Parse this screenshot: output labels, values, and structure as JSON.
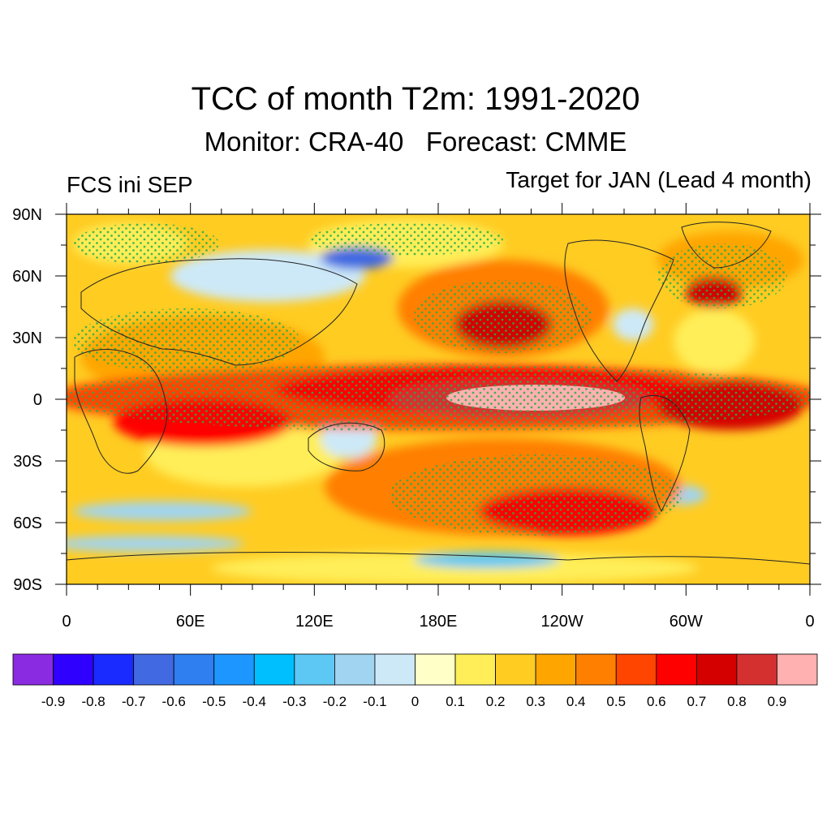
{
  "figure": {
    "title": "TCC of month T2m: 1991-2020",
    "subtitle": "Monitor: CRA-40   Forecast: CMME",
    "left_label": "FCS ini SEP",
    "right_label": "Target for JAN (Lead 4 month)"
  },
  "map": {
    "projection": "cylindrical-equidistant",
    "lon_range": [
      0,
      360
    ],
    "lat_range": [
      -90,
      90
    ],
    "lat_ticks": [
      {
        "value": 90,
        "label": "90N"
      },
      {
        "value": 60,
        "label": "60N"
      },
      {
        "value": 30,
        "label": "30N"
      },
      {
        "value": 0,
        "label": "0"
      },
      {
        "value": -30,
        "label": "30S"
      },
      {
        "value": -60,
        "label": "60S"
      },
      {
        "value": -90,
        "label": "90S"
      }
    ],
    "lon_ticks": [
      {
        "value": 0,
        "label": "0"
      },
      {
        "value": 60,
        "label": "60E"
      },
      {
        "value": 120,
        "label": "120E"
      },
      {
        "value": 180,
        "label": "180E"
      },
      {
        "value": 240,
        "label": "120W"
      },
      {
        "value": 300,
        "label": "60W"
      },
      {
        "value": 360,
        "label": "0"
      }
    ],
    "stippling_color": "#22b14c"
  },
  "colorbar": {
    "colors": [
      "#8a2be2",
      "#3000ff",
      "#1a2bff",
      "#4169e1",
      "#2f7ff0",
      "#1e96ff",
      "#00bfff",
      "#5ec8f5",
      "#a0d4f0",
      "#cde9f8",
      "#ffffc8",
      "#ffee58",
      "#ffcc22",
      "#ffa500",
      "#ff7f00",
      "#ff4500",
      "#ff0000",
      "#d40000",
      "#d43030",
      "#ffb0b0"
    ],
    "labels": [
      "-0.9",
      "-0.8",
      "-0.7",
      "-0.6",
      "-0.5",
      "-0.4",
      "-0.3",
      "-0.2",
      "-0.1",
      "0",
      "0.1",
      "0.2",
      "0.3",
      "0.4",
      "0.5",
      "0.6",
      "0.7",
      "0.8",
      "0.9"
    ]
  }
}
